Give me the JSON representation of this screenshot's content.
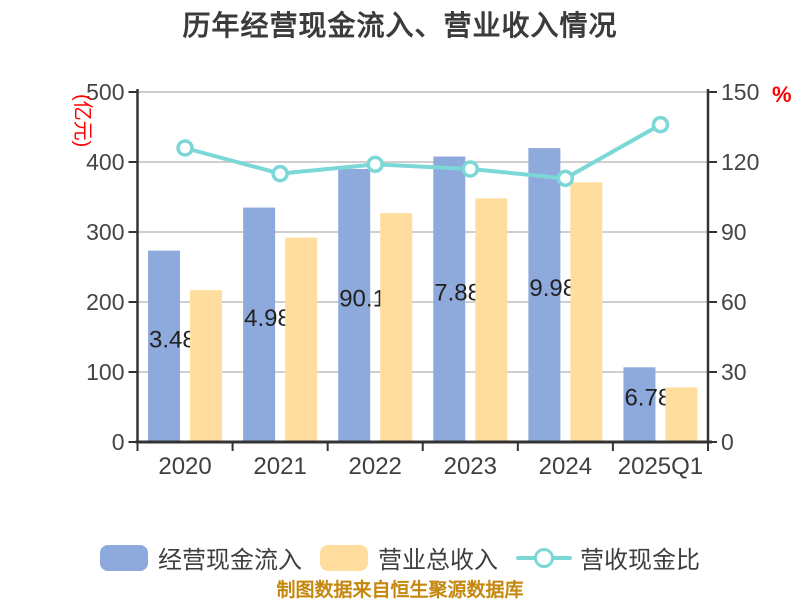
{
  "title": "历年经营现金流入、营业收入情况",
  "footer": "制图数据来自恒生聚源数据库",
  "colors": {
    "bar_cash": "#8EA9DB",
    "bar_revenue": "#FFDD9E",
    "ratio_line": "#7CD7D7",
    "marker_fill": "#FFFFFF",
    "axis_name_red": "#FF0000",
    "grid": "#CFCFCF",
    "axis": "#333333",
    "tick_text": "#454545",
    "bar_label_text": "#222222",
    "title_text": "#3B3B3B",
    "legend_text": "#3E3E3E",
    "footer_text": "#C5880E"
  },
  "chart_data": {
    "type": "bar+line combo",
    "categories": [
      "2020",
      "2021",
      "2022",
      "2023",
      "2024",
      "2025Q1"
    ],
    "series": [
      {
        "name": "经营现金流入",
        "type": "bar",
        "yaxis": "left",
        "unit": "亿元",
        "values": [
          273.4,
          334.9,
          390.1,
          407.8,
          419.9,
          106.7
        ],
        "visible_labels": [
          "3.48",
          "4.98",
          "90.18",
          "7.88",
          "9.98",
          "6.78"
        ]
      },
      {
        "name": "营业总收入",
        "type": "bar",
        "yaxis": "left",
        "unit": "亿元",
        "values": [
          217,
          292,
          327,
          348,
          371,
          78
        ]
      },
      {
        "name": "营收现金比",
        "type": "line",
        "yaxis": "right",
        "unit": "%",
        "values": [
          126,
          115,
          119,
          117,
          113,
          136
        ]
      }
    ],
    "left_axis": {
      "name": "(亿元)",
      "min": 0,
      "max": 500,
      "ticks": [
        "0",
        "100",
        "200",
        "300",
        "400",
        "500"
      ]
    },
    "right_axis": {
      "name": "%",
      "min": 0,
      "max": 150,
      "ticks": [
        "0",
        "30",
        "60",
        "90",
        "120",
        "150"
      ]
    },
    "grid": true,
    "legend_position": "bottom"
  },
  "legend": {
    "items": [
      {
        "label": "经营现金流入",
        "swatch": "bar",
        "color": "#8EA9DB"
      },
      {
        "label": "营业总收入",
        "swatch": "bar",
        "color": "#FFDD9E"
      },
      {
        "label": "营收现金比",
        "swatch": "line-marker",
        "color": "#7CD7D7"
      }
    ]
  }
}
